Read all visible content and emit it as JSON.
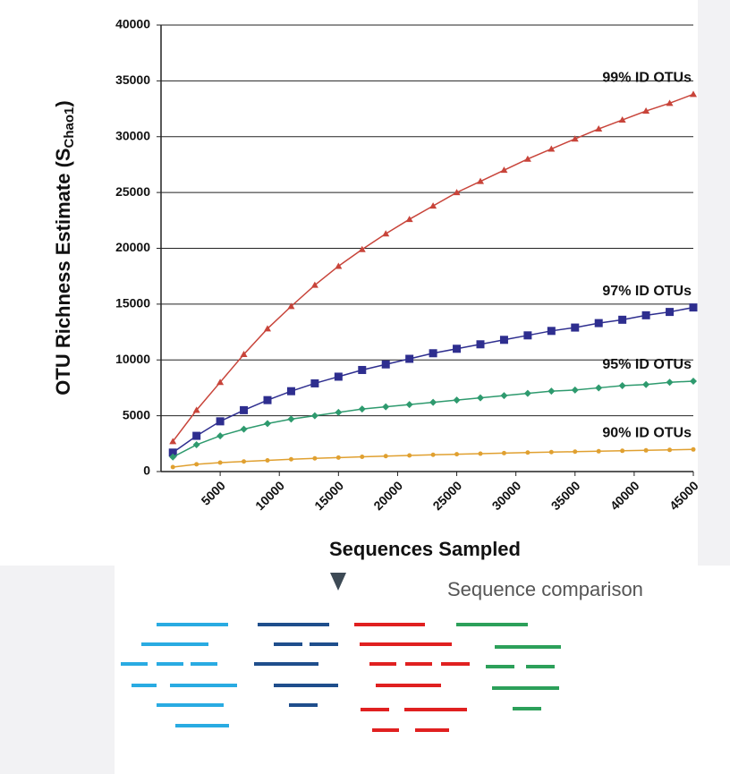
{
  "chart_data": {
    "type": "line",
    "xlabel": "Sequences Sampled",
    "ylabel_parts": [
      "OTU Richness Estimate (S",
      "Chao1",
      ")"
    ],
    "x": [
      1000,
      3000,
      5000,
      7000,
      9000,
      11000,
      13000,
      15000,
      17000,
      19000,
      21000,
      23000,
      25000,
      27000,
      29000,
      31000,
      33000,
      35000,
      37000,
      39000,
      41000,
      43000,
      45000
    ],
    "series": [
      {
        "name": "99% ID OTUs",
        "color": "#c8443a",
        "marker": "triangle",
        "values": [
          2700,
          5500,
          8000,
          10500,
          12800,
          14800,
          16700,
          18400,
          19900,
          21300,
          22600,
          23800,
          25000,
          26000,
          27000,
          28000,
          28900,
          29800,
          30700,
          31500,
          32300,
          33000,
          33800
        ]
      },
      {
        "name": "97% ID OTUs",
        "color": "#2e2e8f",
        "marker": "square",
        "values": [
          1700,
          3200,
          4500,
          5500,
          6400,
          7200,
          7900,
          8500,
          9100,
          9600,
          10100,
          10600,
          11000,
          11400,
          11800,
          12200,
          12600,
          12900,
          13300,
          13600,
          14000,
          14300,
          14700
        ]
      },
      {
        "name": "95% ID OTUs",
        "color": "#2e9a6e",
        "marker": "diamond",
        "values": [
          1300,
          2400,
          3200,
          3800,
          4300,
          4700,
          5000,
          5300,
          5600,
          5800,
          6000,
          6200,
          6400,
          6600,
          6800,
          7000,
          7200,
          7300,
          7500,
          7700,
          7800,
          8000,
          8100
        ]
      },
      {
        "name": "90% ID OTUs",
        "color": "#e0a030",
        "marker": "circle",
        "values": [
          400,
          650,
          800,
          900,
          1000,
          1100,
          1180,
          1250,
          1320,
          1380,
          1440,
          1500,
          1550,
          1600,
          1650,
          1700,
          1740,
          1780,
          1820,
          1860,
          1900,
          1940,
          1980
        ]
      }
    ],
    "xlim": [
      0,
      45000
    ],
    "xticks": [
      5000,
      10000,
      15000,
      20000,
      25000,
      30000,
      35000,
      40000,
      45000
    ],
    "ylim": [
      0,
      40000
    ],
    "yticks": [
      0,
      5000,
      10000,
      15000,
      20000,
      25000,
      30000,
      35000,
      40000
    ],
    "grid": true
  },
  "diagram": {
    "caption": "Sequence comparison"
  }
}
